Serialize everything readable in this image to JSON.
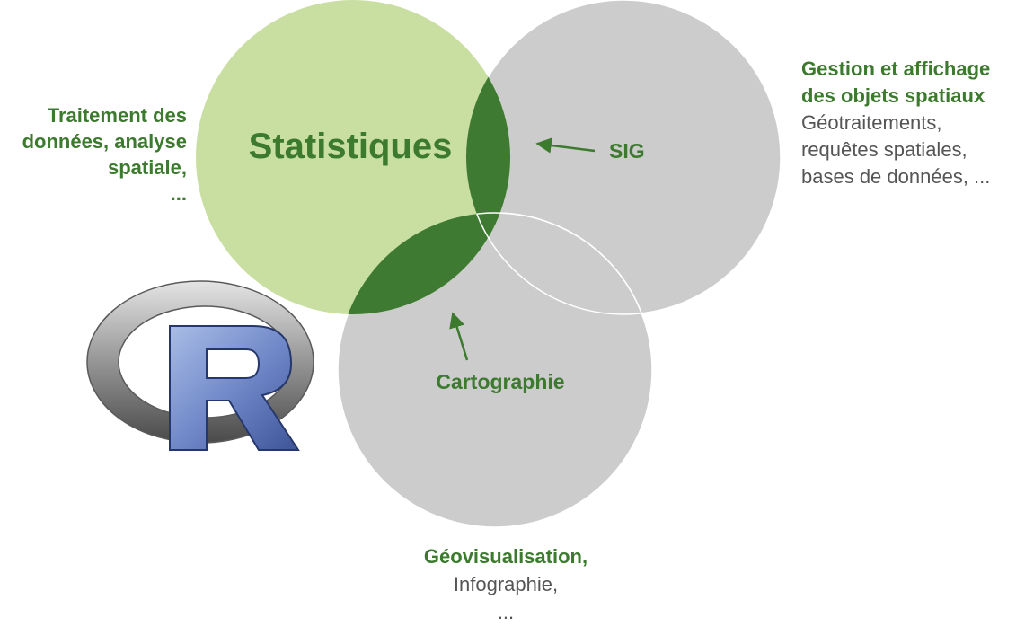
{
  "colors": {
    "statistics_fill": "#c9dfa2",
    "circle_gray": "#cccccc",
    "intersection_green": "#3e7a31",
    "label_green": "#3c7a2e",
    "text_gray": "#555555"
  },
  "circles": {
    "statistics": "Statistiques",
    "sig": "SIG",
    "cartography": "Cartographie"
  },
  "left_block": {
    "lines": [
      "Traitement des",
      "données, analyse",
      "spatiale,",
      "..."
    ]
  },
  "right_block": {
    "title_lines": [
      "Gestion et affichage",
      "des objets spatiaux"
    ],
    "body_lines": [
      "Géotraitements,",
      "requêtes spatiales,",
      "bases de données, ..."
    ]
  },
  "bottom_block": {
    "title": "Géovisualisation,",
    "body_lines": [
      "Infographie,",
      "..."
    ]
  },
  "logo": {
    "name": "r-logo",
    "letter": "R"
  }
}
